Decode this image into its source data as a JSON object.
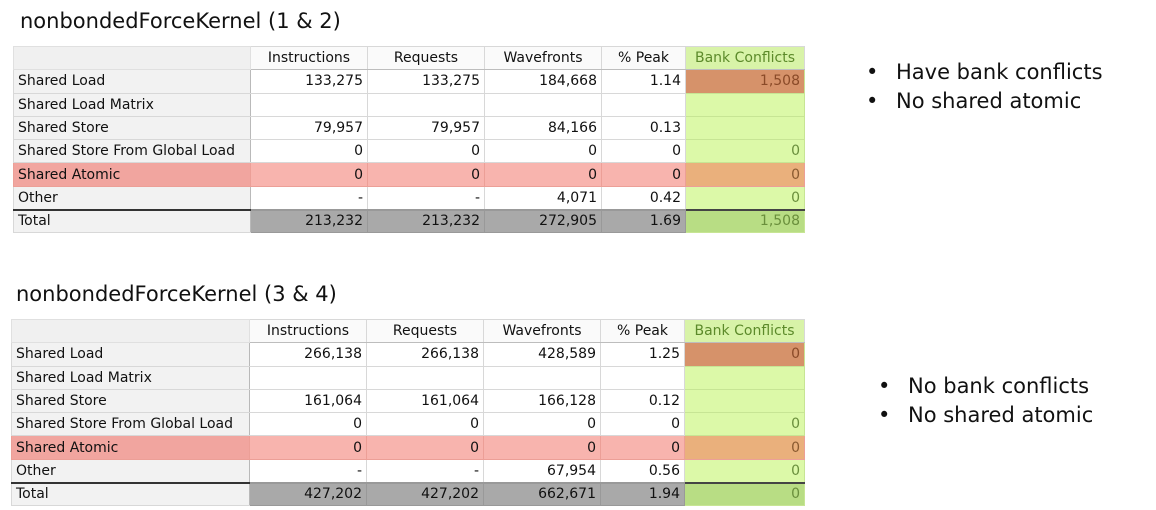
{
  "sections": [
    {
      "title": "nonbondedForceKernel (1 & 2)",
      "columns": [
        "Instructions",
        "Requests",
        "Wavefronts",
        "% Peak",
        "Bank Conflicts"
      ],
      "rows": [
        {
          "label": "Shared Load",
          "values": [
            "133,275",
            "133,275",
            "184,668",
            "1.14",
            "1,508"
          ]
        },
        {
          "label": "Shared Load Matrix",
          "values": [
            "",
            "",
            "",
            "",
            ""
          ]
        },
        {
          "label": "Shared Store",
          "values": [
            "79,957",
            "79,957",
            "84,166",
            "0.13",
            ""
          ]
        },
        {
          "label": "Shared Store From Global Load",
          "values": [
            "0",
            "0",
            "0",
            "0",
            "0"
          ]
        },
        {
          "label": "Shared Atomic",
          "values": [
            "0",
            "0",
            "0",
            "0",
            "0"
          ]
        },
        {
          "label": "Other",
          "values": [
            "-",
            "-",
            "4,071",
            "0.42",
            "0"
          ]
        },
        {
          "label": "Total",
          "values": [
            "213,232",
            "213,232",
            "272,905",
            "1.69",
            "1,508"
          ]
        }
      ],
      "notes": [
        "Have bank conflicts",
        "No shared atomic"
      ]
    },
    {
      "title": "nonbondedForceKernel (3 & 4)",
      "columns": [
        "Instructions",
        "Requests",
        "Wavefronts",
        "% Peak",
        "Bank Conflicts"
      ],
      "rows": [
        {
          "label": "Shared Load",
          "values": [
            "266,138",
            "266,138",
            "428,589",
            "1.25",
            "0"
          ]
        },
        {
          "label": "Shared Load Matrix",
          "values": [
            "",
            "",
            "",
            "",
            ""
          ]
        },
        {
          "label": "Shared Store",
          "values": [
            "161,064",
            "161,064",
            "166,128",
            "0.12",
            ""
          ]
        },
        {
          "label": "Shared Store From Global Load",
          "values": [
            "0",
            "0",
            "0",
            "0",
            "0"
          ]
        },
        {
          "label": "Shared Atomic",
          "values": [
            "0",
            "0",
            "0",
            "0",
            "0"
          ]
        },
        {
          "label": "Other",
          "values": [
            "-",
            "-",
            "67,954",
            "0.56",
            "0"
          ]
        },
        {
          "label": "Total",
          "values": [
            "427,202",
            "427,202",
            "662,671",
            "1.94",
            "0"
          ]
        }
      ],
      "notes": [
        "No bank conflicts",
        "No shared atomic"
      ]
    }
  ],
  "bullet_glyph": "•",
  "colors": {
    "bank_column": "#dcf9a8",
    "bank_conflict_hot": "#d6926a",
    "atomic_row": "#f8b4ae",
    "total_row": "#a9a9a9"
  }
}
